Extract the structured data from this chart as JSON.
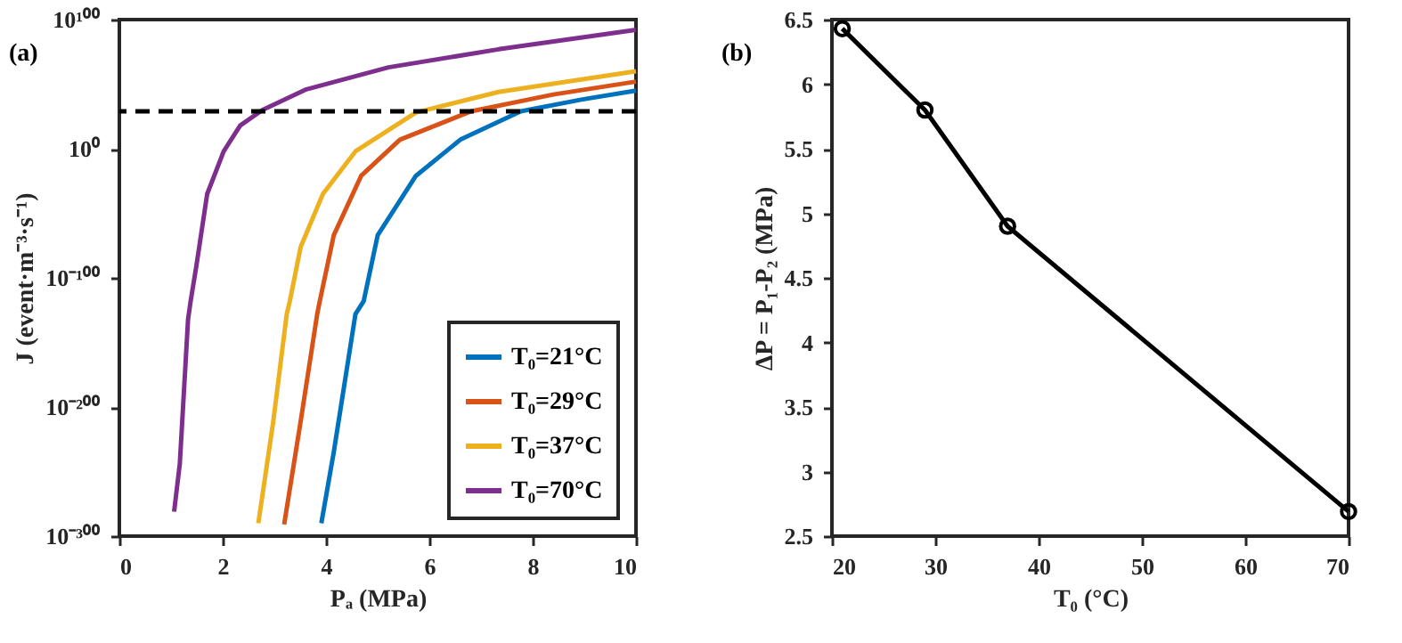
{
  "chart_data": [
    {
      "type": "line",
      "title": "(a)",
      "xlabel": "Pₐ (MPa)",
      "ylabel": "J (event·m⁻³·s⁻¹)",
      "log": "y",
      "xlim": [
        0,
        10
      ],
      "xticks": [
        0,
        2,
        4,
        6,
        8,
        10
      ],
      "ylim": [
        1e-300,
        1e+100
      ],
      "yticks": [
        {
          "value": 1e-300,
          "label": "10⁻³⁰⁰"
        },
        {
          "value": 1e-200,
          "label": "10⁻²⁰⁰"
        },
        {
          "value": 1e-100,
          "label": "10⁻¹⁰⁰"
        },
        {
          "value": 1,
          "label": "10⁰"
        },
        {
          "value": 1e+100,
          "label": "10¹⁰⁰"
        }
      ],
      "legend": "bottom right",
      "grid": false,
      "ref_lines": [
        {
          "axis": "y",
          "value": 1e+29,
          "color": "#000000",
          "line_style": "dashed"
        }
      ],
      "series": [
        {
          "name": "T₀=21°C",
          "color": "#0072bd",
          "x": [
            3.91,
            4.15,
            4.57,
            4.73,
            5.0,
            5.74,
            6.6,
            7.77,
            8.94,
            10
          ],
          "values": [
            1e-290,
            1e-235,
            1e-128,
            1e-118,
            1e-67,
            1e-21,
            10000000.0,
            1e+29,
            1e+38,
            1e+45
          ]
        },
        {
          "name": "T₀=29°C",
          "color": "#d95319",
          "x": [
            3.19,
            3.51,
            3.83,
            3.88,
            4.15,
            4.68,
            5.43,
            6.81,
            8.4,
            10
          ],
          "values": [
            1e-291,
            1e-211,
            1e-128,
            1e-118,
            1e-67,
            1e-21,
            10000000.0,
            1e+29,
            1e+42,
            1e+52
          ]
        },
        {
          "name": "T₀=37°C",
          "color": "#edb120",
          "x": [
            2.69,
            2.98,
            3.24,
            3.3,
            3.51,
            3.94,
            4.57,
            5.74,
            7.34,
            10
          ],
          "values": [
            1e-290,
            1e-211,
            1e-128,
            1e-118,
            1e-76,
            1e-35,
            0.01,
            1e+28,
            1e+44,
            1e+60
          ]
        },
        {
          "name": "T₀=70°C",
          "color": "#7e2f8e",
          "x": [
            1.06,
            1.17,
            1.33,
            1.38,
            1.49,
            1.7,
            2.02,
            2.34,
            2.77,
            3.62,
            5.21,
            7.34,
            10
          ],
          "values": [
            1e-281,
            1e-244,
            1e-132,
            1e-118,
            1e-91,
            1e-35,
            0.01,
            1e+18,
            1e+30,
            1e+46,
            1e+63,
            1e+77,
            1e+92
          ]
        }
      ]
    },
    {
      "type": "line",
      "title": "(b)",
      "xlabel": "T₀ (°C)",
      "ylabel": "ΔP = P₁-P₂ (MPa)",
      "xlim": [
        20,
        70
      ],
      "xticks": [
        20,
        30,
        40,
        50,
        60,
        70
      ],
      "ylim": [
        2.5,
        6.5
      ],
      "yticks": [
        2.5,
        3,
        3.5,
        4,
        4.5,
        5,
        5.5,
        6,
        6.5
      ],
      "grid": false,
      "marker": "circle",
      "series": [
        {
          "color": "#000000",
          "x": [
            21,
            29,
            37,
            70
          ],
          "values": [
            6.43,
            5.8,
            4.9,
            2.69
          ]
        }
      ]
    }
  ]
}
